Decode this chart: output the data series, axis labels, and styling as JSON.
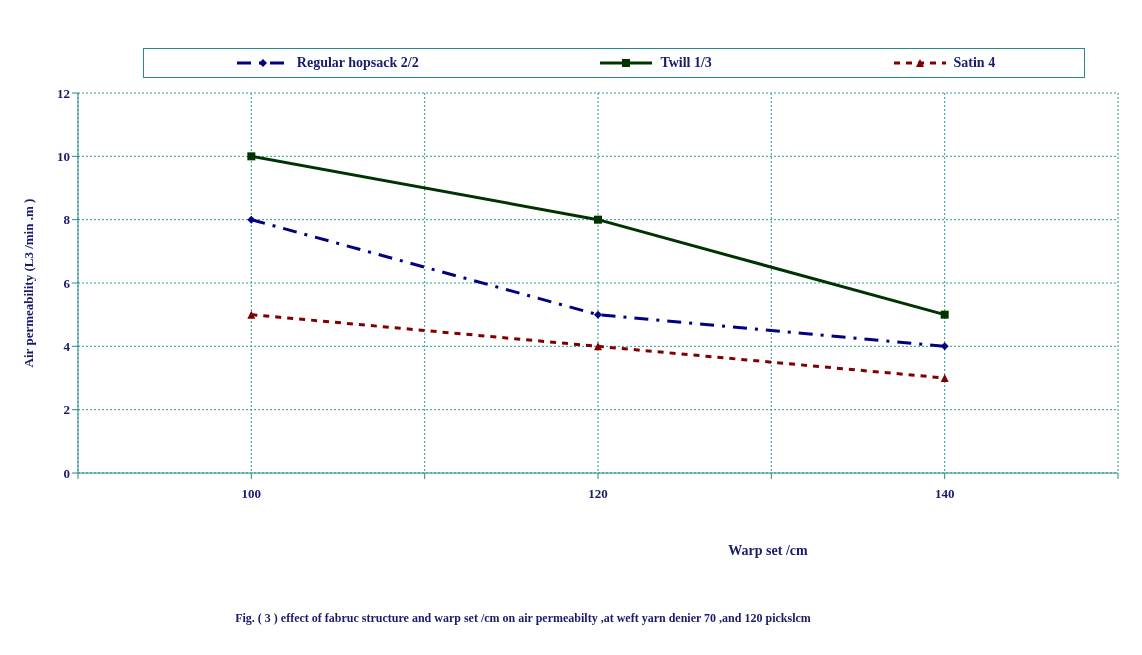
{
  "chart_data": {
    "type": "line",
    "xlabel": "Warp set /cm",
    "ylabel": "Air permeability  (L3 /min .m )",
    "annotations": [
      "Fig. ( 3 ) effect of fabruc structure and warp set /cm on air permeabilty ,at weft yarn denier 70 ,and 120 pickslcm"
    ],
    "x": [
      100,
      120,
      140
    ],
    "series": [
      {
        "name": "Regular hopsack 2/2",
        "color": "#000080",
        "values": [
          8,
          5,
          4
        ],
        "marker": "diamond",
        "line_style": "dashed"
      },
      {
        "name": "Twill 1/3",
        "color": "#003300",
        "values": [
          10,
          8,
          5
        ],
        "marker": "square",
        "line_style": "solid"
      },
      {
        "name": "Satin 4",
        "color": "#800000",
        "values": [
          5,
          4,
          3
        ],
        "marker": "triangle",
        "line_style": "dotted"
      }
    ],
    "xlim": [
      90,
      150
    ],
    "xticks": [
      {
        "value": 90,
        "label": null
      },
      100,
      {
        "value": 110,
        "label": null
      },
      120,
      {
        "value": 130,
        "label": null
      },
      140,
      {
        "value": 150,
        "label": null
      }
    ],
    "ylim": [
      0,
      12
    ],
    "yticks": [
      0,
      2,
      4,
      6,
      8,
      10,
      12
    ],
    "grid": true,
    "legend": "top"
  }
}
